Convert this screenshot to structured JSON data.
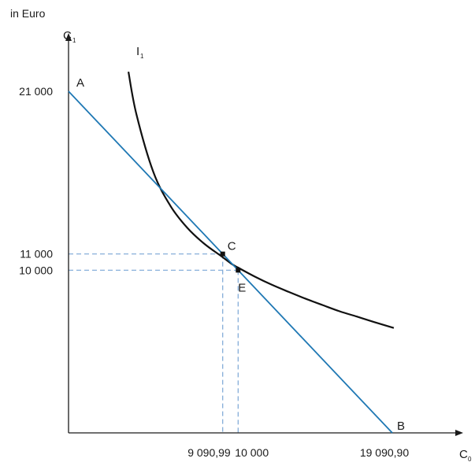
{
  "chart_data": {
    "type": "line",
    "unit_label": "in Euro",
    "axes": {
      "x": {
        "name": "C",
        "subscript": "0",
        "min": 0,
        "max": 21000
      },
      "y": {
        "name": "C",
        "subscript": "1",
        "min": 0,
        "max": 23200
      }
    },
    "x_ticks": [
      {
        "value": 9090.99,
        "label": "9 090,99"
      },
      {
        "value": 10000,
        "label": "10 000"
      },
      {
        "value": 19090.9,
        "label": "19 090,90"
      }
    ],
    "y_ticks": [
      {
        "value": 21000,
        "label": "21 000"
      },
      {
        "value": 11000,
        "label": "11 000"
      },
      {
        "value": 10000,
        "label": "10 000"
      }
    ],
    "series": [
      {
        "name": "I",
        "subscript": "1",
        "kind": "indifference-curve",
        "color": "#111111",
        "points": [
          [
            3533,
            22200
          ],
          [
            4000,
            19600
          ],
          [
            5000,
            16040
          ],
          [
            6000,
            13970
          ],
          [
            7000,
            12610
          ],
          [
            8000,
            11630
          ],
          [
            9000,
            10870
          ],
          [
            9600,
            10400
          ],
          [
            10000,
            10160
          ],
          [
            11000,
            9600
          ],
          [
            12000,
            9100
          ],
          [
            13000,
            8660
          ],
          [
            14000,
            8240
          ],
          [
            15000,
            7850
          ],
          [
            16000,
            7470
          ],
          [
            17000,
            7150
          ],
          [
            18000,
            6820
          ],
          [
            19180,
            6450
          ]
        ]
      },
      {
        "name": "",
        "kind": "budget-line",
        "color": "#1f78b4",
        "points": [
          [
            0,
            21000
          ],
          [
            19090.9,
            0
          ]
        ]
      }
    ],
    "points": [
      {
        "label": "A",
        "x": 0,
        "y": 21000,
        "marker": false
      },
      {
        "label": "B",
        "x": 19090.9,
        "y": 0,
        "marker": false
      },
      {
        "label": "C",
        "x": 9090.99,
        "y": 11000,
        "marker": true
      },
      {
        "label": "E",
        "x": 10000,
        "y": 10000,
        "marker": true
      }
    ],
    "guides": [
      {
        "x": 9090.99,
        "y": 11000
      },
      {
        "x": 10000,
        "y": 10000
      }
    ],
    "colors": {
      "axis": "#1a1a1a",
      "guide": "#7aa6d6",
      "marker": "#111111"
    }
  }
}
